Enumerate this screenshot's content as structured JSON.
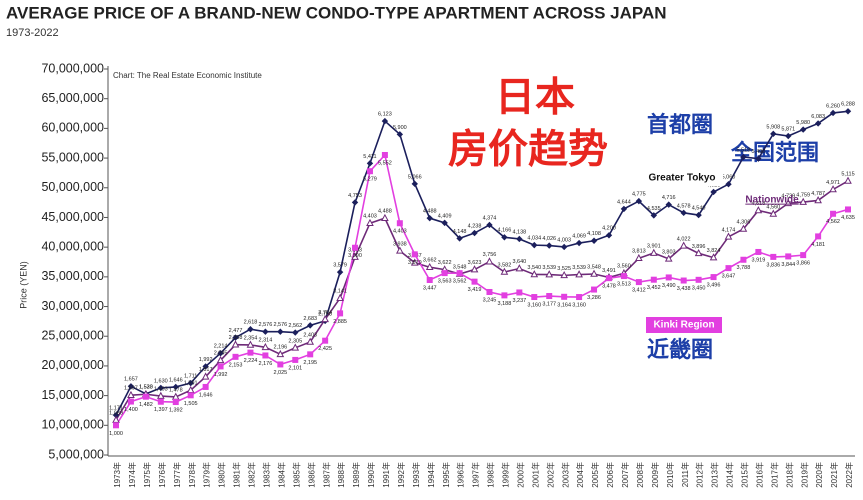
{
  "chart_data": {
    "type": "line",
    "title": "AVERAGE PRICE OF A BRAND-NEW CONDO-TYPE APARTMENT ACROSS JAPAN",
    "subtitle": "1973-2022",
    "source": "Chart: The Real Estate Economic Institute",
    "y_label": "Price (YEN)",
    "annotations": [
      "日本",
      "房价趋势",
      "首都圈",
      "全国范围",
      "近畿圈"
    ],
    "categories": [
      "1973年",
      "1974年",
      "1975年",
      "1976年",
      "1977年",
      "1978年",
      "1979年",
      "1980年",
      "1981年",
      "1982年",
      "1983年",
      "1984年",
      "1985年",
      "1986年",
      "1987年",
      "1988年",
      "1989年",
      "1990年",
      "1991年",
      "1992年",
      "1993年",
      "1994年",
      "1995年",
      "1996年",
      "1997年",
      "1998年",
      "1999年",
      "2000年",
      "2001年",
      "2002年",
      "2003年",
      "2004年",
      "2005年",
      "2006年",
      "2007年",
      "2008年",
      "2009年",
      "2010年",
      "2011年",
      "2012年",
      "2013年",
      "2014年",
      "2015年",
      "2016年",
      "2017年",
      "2018年",
      "2019年",
      "2020年",
      "2021年",
      "2022年"
    ],
    "ylim": [
      5000000,
      70000000
    ],
    "yticks": [
      {
        "value": 5000000,
        "label": "5,000,000"
      },
      {
        "value": 10000000,
        "label": "10,000,000"
      },
      {
        "value": 15000000,
        "label": "15,000,000"
      },
      {
        "value": 20000000,
        "label": "20,000,000"
      },
      {
        "value": 25000000,
        "label": "25,000,000"
      },
      {
        "value": 30000000,
        "label": "30,000,000"
      },
      {
        "value": 35000000,
        "label": "35,000,000"
      },
      {
        "value": 40000000,
        "label": "40,000,000"
      },
      {
        "value": 45000000,
        "label": "45,000,000"
      },
      {
        "value": 50000000,
        "label": "50,000,000"
      },
      {
        "value": 55000000,
        "label": "55,000,000"
      },
      {
        "value": 60000000,
        "label": "60,000,000"
      },
      {
        "value": 65000000,
        "label": "65,000,000"
      },
      {
        "value": 70000000,
        "label": "70,000,000"
      }
    ],
    "grid": false,
    "series": [
      {
        "name": "Greater Tokyo",
        "color": "#1b1f5c",
        "marker": "diamond",
        "values": [
          11710000,
          16570000,
          15300000,
          16300000,
          16460000,
          17110000,
          19920000,
          22140000,
          24770000,
          26180000,
          25760000,
          25760000,
          25620000,
          26830000,
          27580000,
          35790000,
          47530000,
          54110000,
          61230000,
          59000000,
          50660000,
          44880000,
          44090000,
          41480000,
          42380000,
          43740000,
          41660000,
          41380000,
          40340000,
          40260000,
          40030000,
          40690000,
          41080000,
          42000000,
          46440000,
          47750000,
          45350000,
          47160000,
          45780000,
          45400000,
          49290000,
          50600000,
          55180000,
          54900000,
          59080000,
          58710000,
          59800000,
          60830000,
          62600000,
          62880000
        ],
        "value_labels": [
          "1,171",
          "1,657",
          "1,530",
          "1,630",
          "1,646",
          "1,711",
          "1,992",
          "2,214",
          "2,477",
          "2,618",
          "2,576",
          "2,576",
          "2,562",
          "2,683",
          "2,758",
          "3,579",
          "4,753",
          "5,411",
          "6,123",
          "5,900",
          "5,066",
          "4,488",
          "4,409",
          "4,148",
          "4,238",
          "4,374",
          "4,166",
          "4,138",
          "4,034",
          "4,026",
          "4,003",
          "4,069",
          "4,108",
          "4,200",
          "4,644",
          "4,775",
          "4,535",
          "4,716",
          "4,578",
          "4,540",
          "4,929",
          "5,060",
          "5,518",
          "5,490",
          "5,908",
          "5,871",
          "5,980",
          "6,083",
          "6,260",
          "6,288"
        ]
      },
      {
        "name": "Nationwide",
        "color": "#6e2a78",
        "marker": "triangle",
        "values": [
          10890000,
          15070000,
          15230000,
          14930000,
          14780000,
          15910000,
          18170000,
          20950000,
          23580000,
          23540000,
          23140000,
          21960000,
          23050000,
          24030000,
          27840000,
          31410000,
          38330000,
          44030000,
          44880000,
          39380000,
          37370000,
          36620000,
          36220000,
          35480000,
          36230000,
          37560000,
          35820000,
          36400000,
          35400000,
          35390000,
          35250000,
          35390000,
          35480000,
          34910000,
          35600000,
          38130000,
          39010000,
          38030000,
          40220000,
          38960000,
          38240000,
          41740000,
          43060000,
          46180000,
          45600000,
          47390000,
          47590000,
          47870000,
          49710000,
          51150000
        ],
        "value_labels": [
          "1,089",
          "1,507",
          "1,523",
          "1,493",
          "1,478",
          "1,591",
          "1,817",
          "2,095",
          "2,358",
          "2,354",
          "2,314",
          "2,196",
          "2,305",
          "2,403",
          "2,784",
          "3,141",
          "3,833",
          "4,403",
          "4,488",
          "3,938",
          "3,737",
          "3,662",
          "3,622",
          "3,548",
          "3,623",
          "3,756",
          "3,582",
          "3,640",
          "3,540",
          "3,539",
          "3,525",
          "3,539",
          "3,548",
          "3,491",
          "3,560",
          "3,813",
          "3,901",
          "3,803",
          "4,022",
          "3,896",
          "3,824",
          "4,174",
          "4,306",
          "4,618",
          "4,560",
          "4,739",
          "4,759",
          "4,787",
          "4,971",
          "5,115"
        ]
      },
      {
        "name": "Kinki Region",
        "color": "#e23fe0",
        "marker": "square",
        "values": [
          10000000,
          14000000,
          14820000,
          13970000,
          13920000,
          15050000,
          16460000,
          19920000,
          21530000,
          22240000,
          21760000,
          20250000,
          21010000,
          21950000,
          24250000,
          28850000,
          39900000,
          52790000,
          55520000,
          44030000,
          38790000,
          34470000,
          35630000,
          35620000,
          34190000,
          32450000,
          31880000,
          32370000,
          31600000,
          31770000,
          31640000,
          31600000,
          32860000,
          34780000,
          35130000,
          34120000,
          34520000,
          34900000,
          34380000,
          34500000,
          34960000,
          36470000,
          37880000,
          39190000,
          38360000,
          38440000,
          38660000,
          41810000,
          45620000,
          46350000
        ],
        "value_labels": [
          "1,000",
          "1,400",
          "1,482",
          "1,397",
          "1,392",
          "1,505",
          "1,646",
          "1,992",
          "2,153",
          "2,224",
          "2,176",
          "2,025",
          "2,101",
          "2,195",
          "2,425",
          "2,885",
          "3,990",
          "5,279",
          "5,552",
          "4,403",
          "3,879",
          "3,447",
          "3,563",
          "3,562",
          "3,419",
          "3,245",
          "3,188",
          "3,237",
          "3,160",
          "3,177",
          "3,164",
          "3,160",
          "3,286",
          "3,478",
          "3,513",
          "3,412",
          "3,452",
          "3,490",
          "3,438",
          "3,450",
          "3,496",
          "3,647",
          "3,788",
          "3,919",
          "3,836",
          "3,844",
          "3,866",
          "4,181",
          "4,562",
          "4,635"
        ]
      }
    ]
  }
}
